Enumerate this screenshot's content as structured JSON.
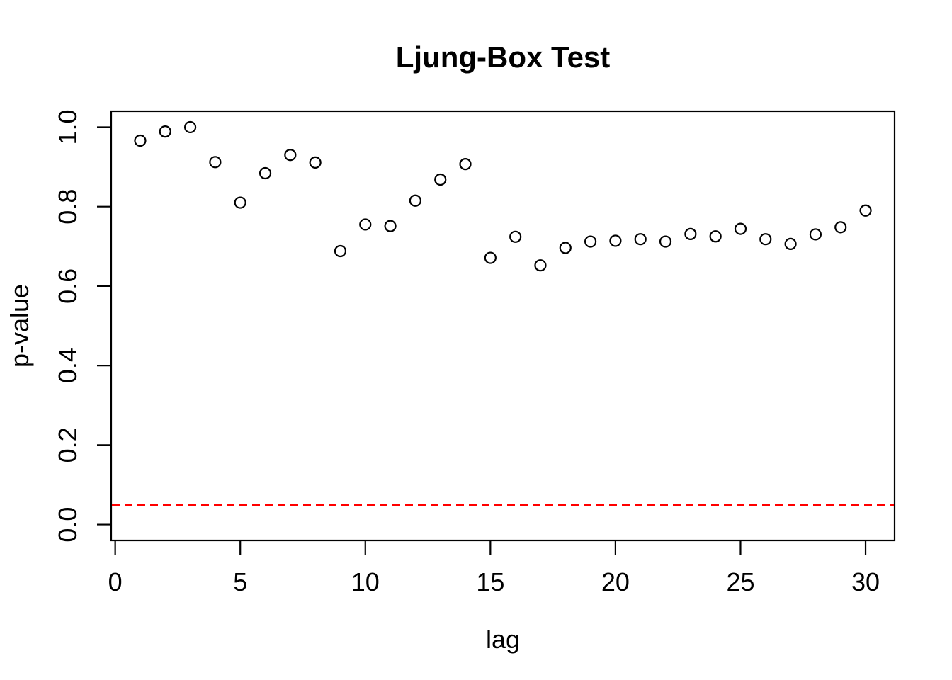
{
  "chart_data": {
    "type": "scatter",
    "title": "Ljung-Box Test",
    "xlabel": "lag",
    "ylabel": "p-value",
    "x": [
      1,
      2,
      3,
      4,
      5,
      6,
      7,
      8,
      9,
      10,
      11,
      12,
      13,
      14,
      15,
      16,
      17,
      18,
      19,
      20,
      21,
      22,
      23,
      24,
      25,
      26,
      27,
      28,
      29,
      30
    ],
    "y": [
      0.966,
      0.989,
      1.0,
      0.912,
      0.81,
      0.884,
      0.93,
      0.911,
      0.688,
      0.755,
      0.751,
      0.815,
      0.868,
      0.907,
      0.671,
      0.724,
      0.652,
      0.696,
      0.712,
      0.714,
      0.718,
      0.712,
      0.731,
      0.725,
      0.744,
      0.718,
      0.706,
      0.73,
      0.748,
      0.79
    ],
    "xticks": [
      0,
      5,
      10,
      15,
      20,
      25,
      30
    ],
    "yticks": [
      0.0,
      0.2,
      0.4,
      0.6,
      0.8,
      1.0
    ],
    "xlim": [
      -0.16,
      31.16
    ],
    "ylim": [
      -0.04,
      1.04
    ],
    "grid": false,
    "legend": null,
    "point_style": {
      "shape": "open-circle",
      "color": "#000000"
    },
    "reference_line": {
      "y": 0.05,
      "color": "#FF0000",
      "style": "dashed"
    }
  }
}
